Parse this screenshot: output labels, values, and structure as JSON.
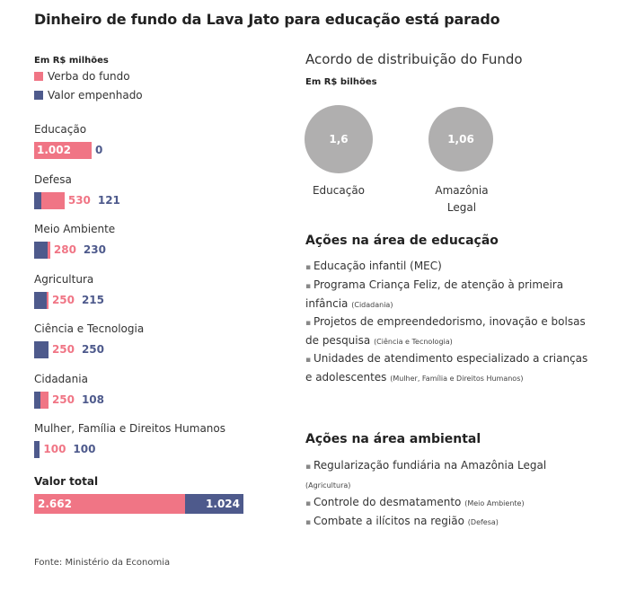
{
  "title": "Dinheiro de fundo da Lava Jato para educação está parado",
  "unit_left": "Em R$ milhões",
  "unit_right": "Em R$ bilhões",
  "right_title": "Acordo de distribuição do Fundo",
  "colors": {
    "verba": "#f07585",
    "empenhado": "#4e5a8c",
    "circle": "#b0afaf"
  },
  "chart_data": {
    "type": "bar",
    "unit": "Em R$ milhões",
    "series": [
      {
        "name": "Verba do fundo",
        "color": "#f07585"
      },
      {
        "name": "Valor empenhado",
        "color": "#4e5a8c"
      }
    ],
    "categories": [
      {
        "label": "Educação",
        "verba": 1002,
        "empenhado": 0,
        "verba_text": "1.002",
        "empenhado_text": "0"
      },
      {
        "label": "Defesa",
        "verba": 530,
        "empenhado": 121,
        "verba_text": "530",
        "empenhado_text": "121"
      },
      {
        "label": "Meio Ambiente",
        "verba": 280,
        "empenhado": 230,
        "verba_text": "280",
        "empenhado_text": "230"
      },
      {
        "label": "Agricultura",
        "verba": 250,
        "empenhado": 215,
        "verba_text": "250",
        "empenhado_text": "215"
      },
      {
        "label": "Ciência e Tecnologia",
        "verba": 250,
        "empenhado": 250,
        "verba_text": "250",
        "empenhado_text": "250"
      },
      {
        "label": "Cidadania",
        "verba": 250,
        "empenhado": 108,
        "verba_text": "250",
        "empenhado_text": "108"
      },
      {
        "label": "Mulher, Família e Direitos Humanos",
        "verba": 100,
        "empenhado": 100,
        "verba_text": "100",
        "empenhado_text": "100"
      }
    ],
    "total": {
      "label": "Valor total",
      "verba": 2662,
      "empenhado": 1024,
      "verba_text": "2.662",
      "empenhado_text": "1.024"
    },
    "circles": {
      "unit": "Em R$ bilhões",
      "items": [
        {
          "label": "Educação",
          "value": 1.6,
          "value_text": "1,6"
        },
        {
          "label": "Amazônia Legal",
          "value": 1.06,
          "value_text": "1,06"
        }
      ]
    }
  },
  "educacao": {
    "title": "Ações na área de educação",
    "items": [
      {
        "text": "Educação infantil (MEC)",
        "note": ""
      },
      {
        "text": "Programa Criança Feliz, de atenção à primeira infância",
        "note": "(Cidadania)"
      },
      {
        "text": "Projetos de empreendedorismo, inovação e bolsas de pesquisa",
        "note": "(Ciência e Tecnologia)"
      },
      {
        "text": "Unidades de atendimento especializado a crianças e adolescentes",
        "note": "(Mulher, Família e Direitos Humanos)"
      }
    ]
  },
  "ambiental": {
    "title": "Ações na área ambiental",
    "items": [
      {
        "text": "Regularização fundiária na Amazônia Legal",
        "note": "(Agricultura)"
      },
      {
        "text": "Controle do desmatamento",
        "note": "(Meio Ambiente)"
      },
      {
        "text": "Combate a ilícitos na região",
        "note": "(Defesa)"
      }
    ]
  },
  "source": "Fonte: Ministério da Economia"
}
